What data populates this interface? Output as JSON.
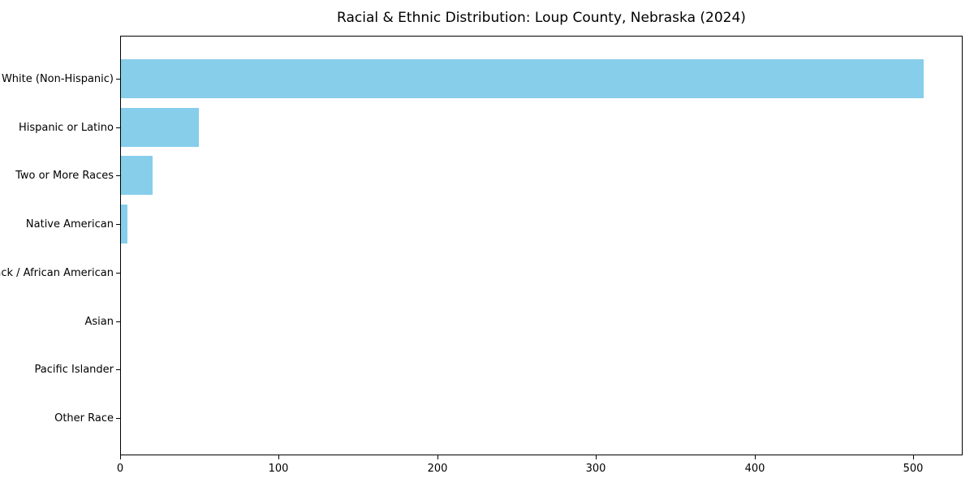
{
  "chart_data": {
    "type": "bar",
    "orientation": "horizontal",
    "title": "Racial & Ethnic Distribution: Loup County, Nebraska (2024)",
    "categories": [
      "White (Non-Hispanic)",
      "Hispanic or Latino",
      "Two or More Races",
      "Native American",
      "Black / African American",
      "Asian",
      "Pacific Islander",
      "Other Race"
    ],
    "values": [
      506,
      49,
      20,
      4,
      0,
      0,
      0,
      0
    ],
    "x_ticks": [
      0,
      100,
      200,
      300,
      400,
      500
    ],
    "xlim": [
      0,
      531
    ],
    "xlabel": "",
    "ylabel": "",
    "grid": false,
    "bar_color": "#87CEEB",
    "frame_color": "#000000",
    "text_color": "#000000",
    "background_color": "#ffffff"
  }
}
